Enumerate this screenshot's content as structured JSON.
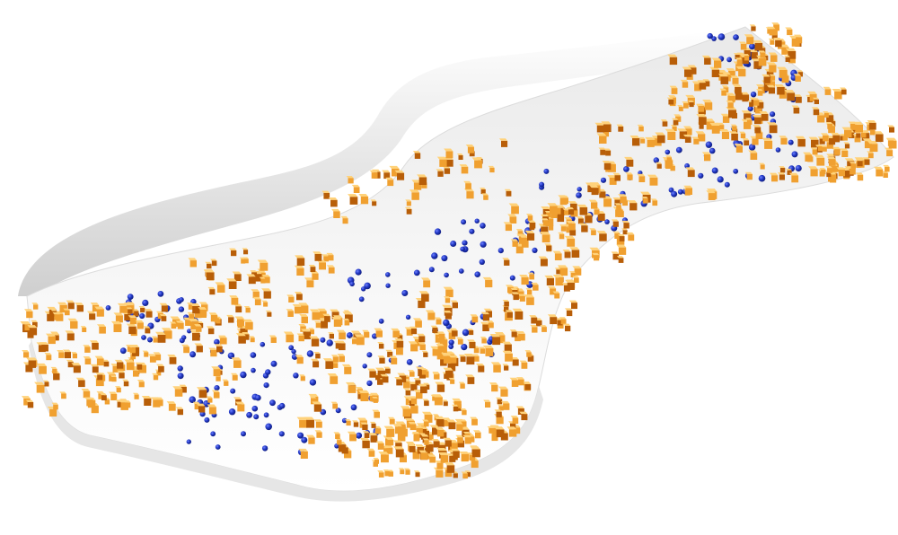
{
  "scene": {
    "description_visible_text": "",
    "background_color": "#ffffff",
    "surface_color": "#f2f2f2",
    "surface_shadow_color": "#c9c9c9",
    "cube_color": "#f0a030",
    "cube_dark_color": "#b85e08",
    "cube_light_color": "#ffd27a",
    "sphere_color": "#1f35b5",
    "sphere_highlight_color": "#6f82ff"
  }
}
